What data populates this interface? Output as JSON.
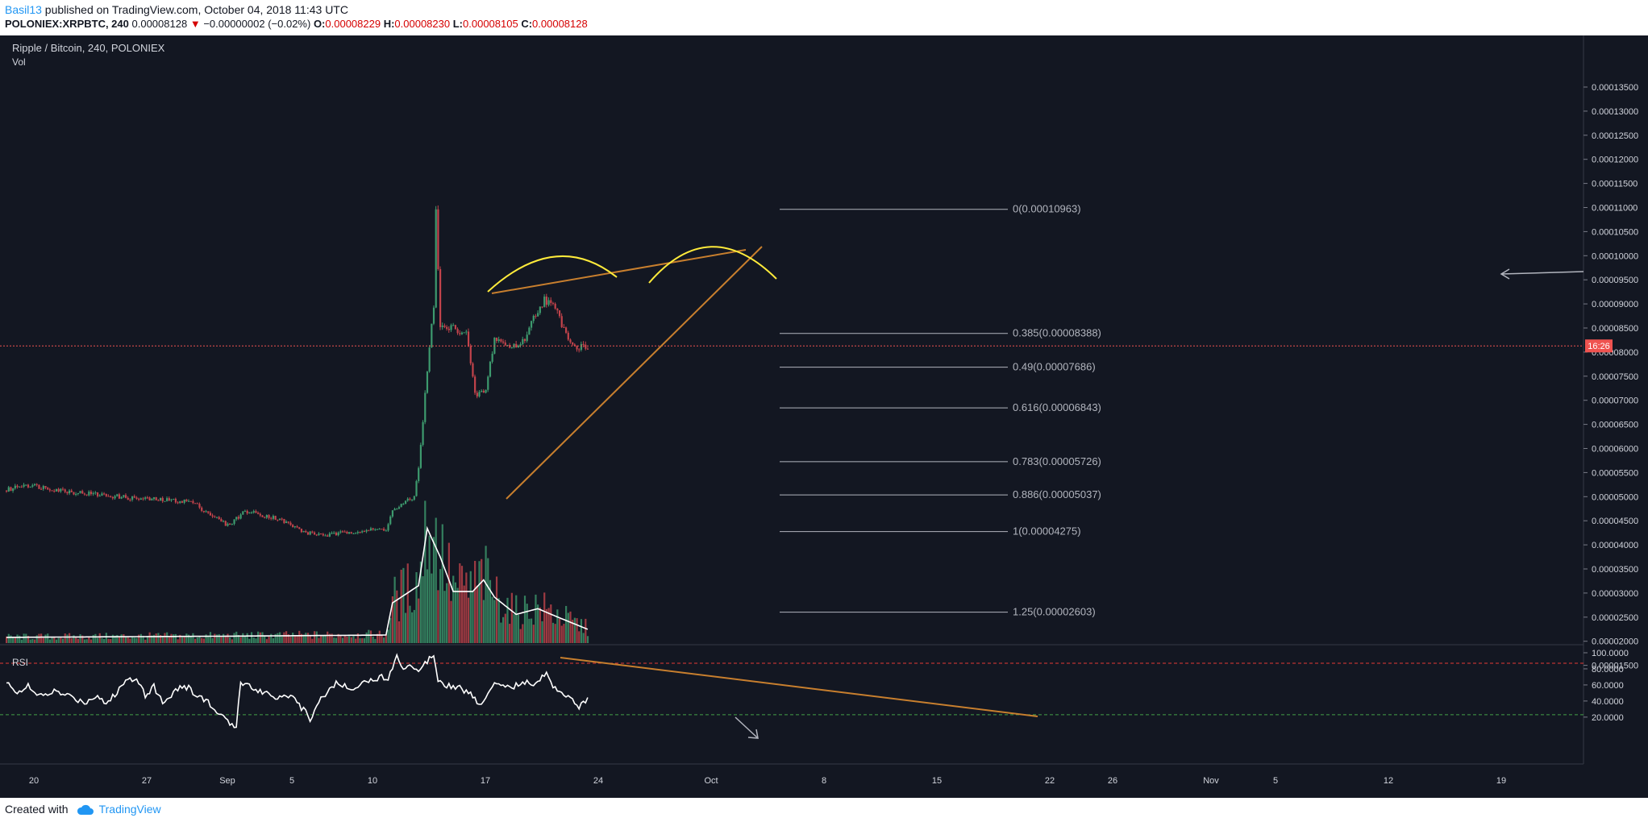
{
  "header": {
    "author": "Basil13",
    "published_text": " published on TradingView.com, October 04, 2018 11:43 UTC",
    "symbol_line": "POLONIEX:XRPBTC, 240",
    "last_price": "0.00008128",
    "change_arrow": "▼",
    "change": "−0.00000002 (−0.02%)",
    "o_label": "O:",
    "o_value": "0.00008229",
    "h_label": "H:",
    "h_value": "0.00008230",
    "l_label": "L:",
    "l_value": "0.00008105",
    "c_label": "C:",
    "c_value": "0.00008128"
  },
  "footer": {
    "created_with": "Created with",
    "brand": "TradingView",
    "logo_icon": "cloud-icon"
  },
  "colors": {
    "background": "#131722",
    "up": "#3d9a6e",
    "down": "#c2434b",
    "fib": "#b2b5be",
    "trend": "#c87f2e",
    "arc": "#ffeb3b",
    "rsi_line": "#ffffff",
    "rsi_upper": "#e53935",
    "rsi_lower": "#43a047",
    "price_line": "#ef5350",
    "text": "#d1d4dc"
  },
  "chart_data": {
    "type": "candlestick",
    "title": "Ripple / Bitcoin, 240, POLONIEX",
    "volume_label": "Vol",
    "rsi_label": "RSI",
    "current_price": 8.128e-05,
    "price_tag": "16:26",
    "y_ticks": [
      "0.00013500",
      "0.00013000",
      "0.00012500",
      "0.00012000",
      "0.00011500",
      "0.00011000",
      "0.00010500",
      "0.00010000",
      "0.00009500",
      "0.00009000",
      "0.00008500",
      "0.00008000",
      "0.00007500",
      "0.00007000",
      "0.00006500",
      "0.00006000",
      "0.00005500",
      "0.00005000",
      "0.00004500",
      "0.00004000",
      "0.00003500",
      "0.00003000",
      "0.00002500",
      "0.00002000",
      "0.00001500"
    ],
    "rsi_ticks": [
      "100.0000",
      "80.0000",
      "60.0000",
      "40.0000",
      "20.0000"
    ],
    "rsi_levels": [
      87,
      23
    ],
    "x_ticks": [
      "20",
      "27",
      "Sep",
      "5",
      "10",
      "17",
      "24",
      "Oct",
      "8",
      "15",
      "22",
      "26",
      "Nov",
      "5",
      "12",
      "19"
    ],
    "fib_levels": [
      {
        "label": "0(0.00010963)",
        "price": 0.00010963
      },
      {
        "label": "0.385(0.00008388)",
        "price": 8.388e-05
      },
      {
        "label": "0.49(0.00007686)",
        "price": 7.686e-05
      },
      {
        "label": "0.616(0.00006843)",
        "price": 6.843e-05
      },
      {
        "label": "0.783(0.00005726)",
        "price": 5.726e-05
      },
      {
        "label": "0.886(0.00005037)",
        "price": 5.037e-05
      },
      {
        "label": "1(0.00004275)",
        "price": 4.275e-05
      },
      {
        "label": "1.25(0.00002603)",
        "price": 2.603e-05
      }
    ],
    "price_path": [
      {
        "i": 0,
        "p": 5.13e-05
      },
      {
        "i": 8,
        "p": 5.26e-05
      },
      {
        "i": 30,
        "p": 5.1e-05
      },
      {
        "i": 60,
        "p": 4.96e-05
      },
      {
        "i": 85,
        "p": 4.9e-05
      },
      {
        "i": 102,
        "p": 4.4e-05
      },
      {
        "i": 110,
        "p": 4.7e-05
      },
      {
        "i": 125,
        "p": 4.55e-05
      },
      {
        "i": 138,
        "p": 4.25e-05
      },
      {
        "i": 148,
        "p": 4.2e-05
      },
      {
        "i": 160,
        "p": 4.28e-05
      },
      {
        "i": 175,
        "p": 4.33e-05
      },
      {
        "i": 178,
        "p": 4.7e-05
      },
      {
        "i": 188,
        "p": 5e-05
      },
      {
        "i": 190,
        "p": 5.6e-05
      },
      {
        "i": 194,
        "p": 7.6e-05
      },
      {
        "i": 197,
        "p": 9e-05
      },
      {
        "i": 198,
        "p": 0.000109
      },
      {
        "i": 200,
        "p": 8.5e-05
      },
      {
        "i": 206,
        "p": 8.5e-05
      },
      {
        "i": 212,
        "p": 8.4e-05
      },
      {
        "i": 216,
        "p": 7.1e-05
      },
      {
        "i": 221,
        "p": 7.2e-05
      },
      {
        "i": 225,
        "p": 8.3e-05
      },
      {
        "i": 232,
        "p": 8.1e-05
      },
      {
        "i": 238,
        "p": 8.2e-05
      },
      {
        "i": 244,
        "p": 8.8e-05
      },
      {
        "i": 248,
        "p": 9.1e-05
      },
      {
        "i": 253,
        "p": 8.9e-05
      },
      {
        "i": 257,
        "p": 8.5e-05
      },
      {
        "i": 262,
        "p": 8.1e-05
      },
      {
        "i": 268,
        "p": 8.13e-05
      }
    ],
    "volume_path": [
      {
        "i": 0,
        "v": 0.05
      },
      {
        "i": 100,
        "v": 0.06
      },
      {
        "i": 175,
        "v": 0.07
      },
      {
        "i": 178,
        "v": 0.35
      },
      {
        "i": 190,
        "v": 0.5
      },
      {
        "i": 194,
        "v": 1.0
      },
      {
        "i": 200,
        "v": 0.75
      },
      {
        "i": 206,
        "v": 0.45
      },
      {
        "i": 215,
        "v": 0.45
      },
      {
        "i": 220,
        "v": 0.55
      },
      {
        "i": 225,
        "v": 0.4
      },
      {
        "i": 235,
        "v": 0.25
      },
      {
        "i": 245,
        "v": 0.3
      },
      {
        "i": 255,
        "v": 0.22
      },
      {
        "i": 268,
        "v": 0.12
      }
    ],
    "rsi_path": [
      {
        "i": 0,
        "r": 62
      },
      {
        "i": 5,
        "r": 52
      },
      {
        "i": 10,
        "r": 58
      },
      {
        "i": 15,
        "r": 45
      },
      {
        "i": 22,
        "r": 52
      },
      {
        "i": 30,
        "r": 45
      },
      {
        "i": 36,
        "r": 38
      },
      {
        "i": 42,
        "r": 48
      },
      {
        "i": 46,
        "r": 36
      },
      {
        "i": 50,
        "r": 48
      },
      {
        "i": 55,
        "r": 65
      },
      {
        "i": 60,
        "r": 70
      },
      {
        "i": 64,
        "r": 48
      },
      {
        "i": 68,
        "r": 58
      },
      {
        "i": 72,
        "r": 38
      },
      {
        "i": 76,
        "r": 48
      },
      {
        "i": 80,
        "r": 58
      },
      {
        "i": 84,
        "r": 56
      },
      {
        "i": 88,
        "r": 46
      },
      {
        "i": 92,
        "r": 42
      },
      {
        "i": 96,
        "r": 28
      },
      {
        "i": 100,
        "r": 20
      },
      {
        "i": 104,
        "r": 8
      },
      {
        "i": 106,
        "r": 10
      },
      {
        "i": 108,
        "r": 65
      },
      {
        "i": 112,
        "r": 58
      },
      {
        "i": 118,
        "r": 52
      },
      {
        "i": 125,
        "r": 45
      },
      {
        "i": 130,
        "r": 48
      },
      {
        "i": 136,
        "r": 32
      },
      {
        "i": 140,
        "r": 18
      },
      {
        "i": 144,
        "r": 40
      },
      {
        "i": 148,
        "r": 52
      },
      {
        "i": 152,
        "r": 62
      },
      {
        "i": 158,
        "r": 56
      },
      {
        "i": 164,
        "r": 62
      },
      {
        "i": 170,
        "r": 68
      },
      {
        "i": 176,
        "r": 70
      },
      {
        "i": 180,
        "r": 95
      },
      {
        "i": 183,
        "r": 80
      },
      {
        "i": 186,
        "r": 88
      },
      {
        "i": 190,
        "r": 76
      },
      {
        "i": 194,
        "r": 90
      },
      {
        "i": 197,
        "r": 99
      },
      {
        "i": 199,
        "r": 68
      },
      {
        "i": 203,
        "r": 60
      },
      {
        "i": 208,
        "r": 58
      },
      {
        "i": 214,
        "r": 48
      },
      {
        "i": 218,
        "r": 35
      },
      {
        "i": 222,
        "r": 50
      },
      {
        "i": 226,
        "r": 64
      },
      {
        "i": 230,
        "r": 60
      },
      {
        "i": 234,
        "r": 58
      },
      {
        "i": 238,
        "r": 65
      },
      {
        "i": 242,
        "r": 60
      },
      {
        "i": 246,
        "r": 65
      },
      {
        "i": 249,
        "r": 78
      },
      {
        "i": 252,
        "r": 58
      },
      {
        "i": 256,
        "r": 52
      },
      {
        "i": 260,
        "r": 45
      },
      {
        "i": 263,
        "r": 32
      },
      {
        "i": 266,
        "r": 38
      },
      {
        "i": 268,
        "r": 44
      }
    ]
  }
}
